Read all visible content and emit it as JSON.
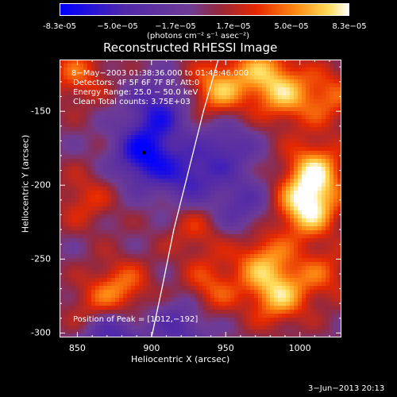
{
  "colorbar": {
    "ticks": [
      "-8.3e-05",
      "−5.0e−05",
      "−1.7e−05",
      "1.7e−05",
      "5.0e−05",
      "8.3e−05"
    ],
    "units": "(photons cm⁻² s⁻¹ asec⁻²)"
  },
  "chart_data": {
    "type": "heatmap",
    "title": "Reconstructed RHESSI Image",
    "xlabel": "Heliocentric X (arcsec)",
    "ylabel": "Heliocentric Y (arcsec)",
    "xlim": [
      838,
      1028
    ],
    "ylim": [
      -303,
      -115
    ],
    "x_ticks": [
      "850",
      "900",
      "950",
      "1000"
    ],
    "y_ticks": [
      "-150",
      "-200",
      "-250",
      "-300"
    ],
    "color_range": [
      -8.3e-05,
      8.3e-05
    ],
    "colormap": "blue-purple-red-yellow-white",
    "peak": {
      "x": 1012,
      "y": -192
    },
    "blobs": [
      {
        "x": 895,
        "y": -180,
        "v": -7.5e-05
      },
      {
        "x": 905,
        "y": -150,
        "v": -5.5e-05
      },
      {
        "x": 872,
        "y": -300,
        "v": -6e-05
      },
      {
        "x": 1010,
        "y": -190,
        "v": 6.5e-05
      },
      {
        "x": 1005,
        "y": -215,
        "v": 8e-05
      },
      {
        "x": 990,
        "y": -140,
        "v": 5e-05
      },
      {
        "x": 945,
        "y": -135,
        "v": 6e-05
      },
      {
        "x": 975,
        "y": -122,
        "v": 4.8e-05
      },
      {
        "x": 850,
        "y": -125,
        "v": 4e-05
      },
      {
        "x": 975,
        "y": -250,
        "v": 5e-05
      },
      {
        "x": 985,
        "y": -275,
        "v": 6e-05
      },
      {
        "x": 940,
        "y": -270,
        "v": 4e-05
      },
      {
        "x": 880,
        "y": -270,
        "v": 4.5e-05
      },
      {
        "x": 862,
        "y": -285,
        "v": 3.5e-05
      },
      {
        "x": 855,
        "y": -210,
        "v": 3e-05
      },
      {
        "x": 930,
        "y": -230,
        "v": 3e-05
      },
      {
        "x": 1015,
        "y": -260,
        "v": 3.5e-05
      },
      {
        "x": 1020,
        "y": -140,
        "v": 4e-05
      },
      {
        "x": 950,
        "y": -175,
        "v": -4e-05
      },
      {
        "x": 925,
        "y": -195,
        "v": -5e-05
      },
      {
        "x": 960,
        "y": -215,
        "v": -3.5e-05
      },
      {
        "x": 920,
        "y": -295,
        "v": -4e-05
      }
    ],
    "limb_curve": [
      [
        945,
        -115
      ],
      [
        935,
        -150
      ],
      [
        925,
        -190
      ],
      [
        915,
        -230
      ],
      [
        907,
        -270
      ],
      [
        900,
        -303
      ]
    ]
  },
  "info_lines": [
    "8−May−2003 01:38:36.000 to 01:43:46.000",
    "Detectors: 4F 5F 6F 7F 8F, Att:0",
    "Energy Range: 25.0 − 50.0 keV",
    "Clean    Total counts: 3.75E+03"
  ],
  "peak_label": "Position of Peak = [1012,−192]",
  "footer": "3−Jun−2013 20:13"
}
